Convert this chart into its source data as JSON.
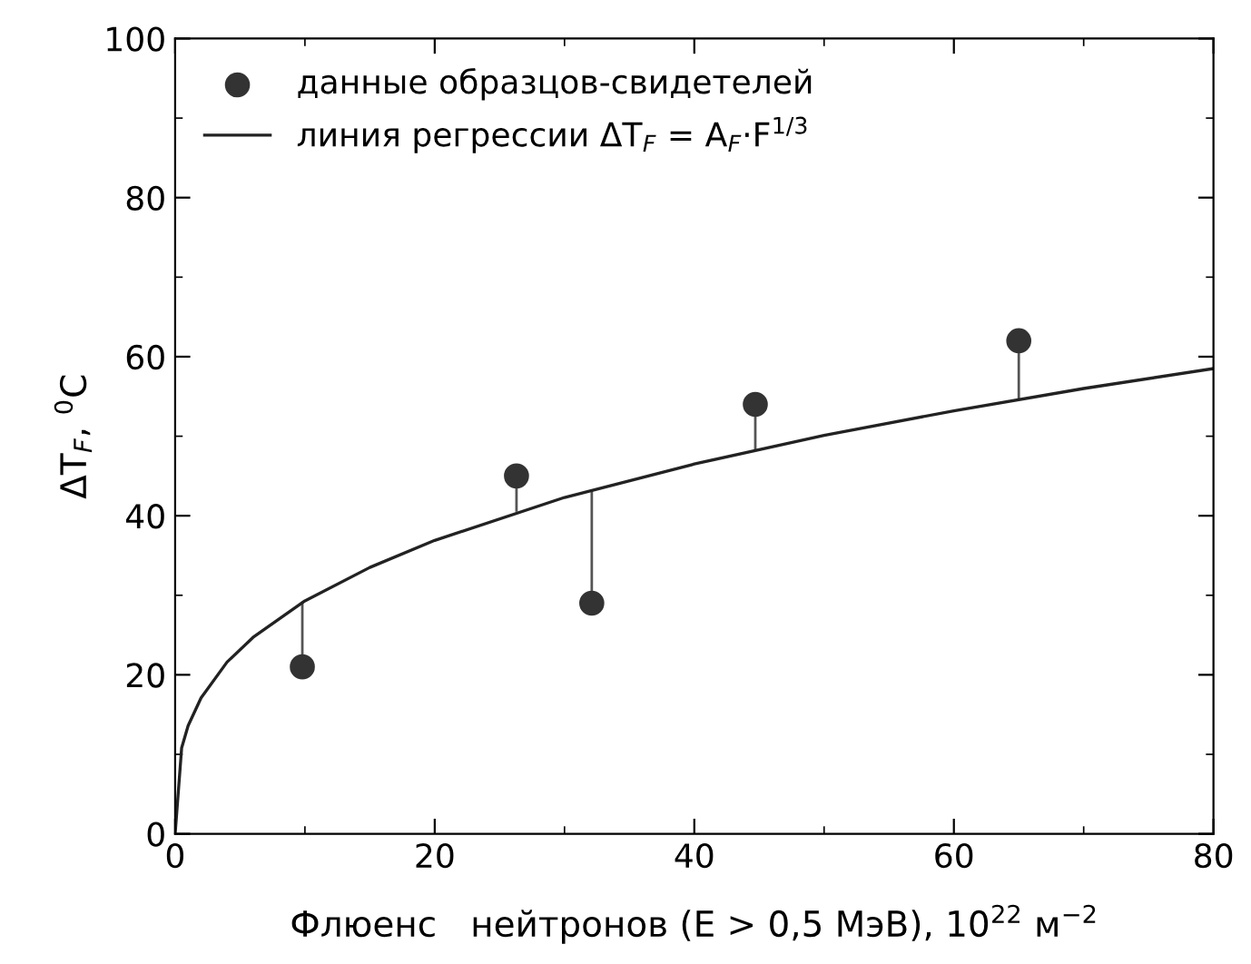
{
  "chart_data": {
    "type": "scatter",
    "xlabel": "Флюенс   нейтронов (E > 0,5 МэВ), 10$^{22}$ м$^{−2}$",
    "ylabel": "ΔT$_{F}$, $^{0}$C",
    "xlim": [
      0,
      80
    ],
    "ylim": [
      0,
      100
    ],
    "xticks": [
      0,
      20,
      40,
      60,
      80
    ],
    "yticks": [
      0,
      20,
      40,
      60,
      80,
      100
    ],
    "grid": false,
    "legend": "top left",
    "series": [
      {
        "name": "данные образцов-свидетелей",
        "color": "#333333",
        "marker": "circle",
        "x": [
          9.8,
          26.3,
          32.1,
          44.7,
          65
        ],
        "values": [
          21,
          45,
          29,
          54,
          62
        ],
        "errors": [
          [
            21,
            29.2
          ],
          [
            40.5,
            45
          ],
          [
            29,
            43.2
          ],
          [
            48.3,
            54
          ],
          [
            54.6,
            62
          ]
        ]
      },
      {
        "name": "линия регрессии ΔT$_{F}$ = A$_{F}$·F$^{1/3}$",
        "type": "line",
        "color": "#222222",
        "marker": "none",
        "line_style": "solid",
        "x": [
          0,
          0.5,
          1,
          2,
          4,
          6,
          10,
          15,
          20,
          30,
          40,
          50,
          60,
          70,
          80
        ],
        "values": [
          0,
          10.8,
          13.6,
          17.1,
          21.6,
          24.7,
          29.3,
          33.5,
          36.9,
          42.3,
          46.5,
          50.1,
          53.2,
          56.0,
          58.5
        ]
      }
    ]
  }
}
